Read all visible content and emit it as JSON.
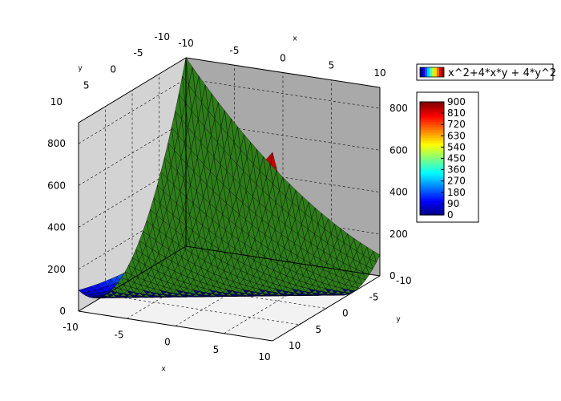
{
  "chart_data": {
    "type": "surface3d",
    "function": "x^2+4*x*y + 4*y^2",
    "title": "",
    "legend": {
      "label": "x^2+4*x*y + 4*y^2",
      "position": "top-right"
    },
    "x": {
      "label": "x",
      "range": [
        -10,
        10
      ],
      "ticks": [
        "-10",
        "-5",
        "0",
        "5",
        "10"
      ]
    },
    "y": {
      "label": "y",
      "range": [
        -10,
        10
      ],
      "ticks": [
        "-10",
        "-5",
        "0",
        "5",
        "10"
      ]
    },
    "z": {
      "range": [
        0,
        900
      ],
      "ticks": [
        "0",
        "200",
        "400",
        "600",
        "800"
      ]
    },
    "colorbar": {
      "range": [
        0,
        900
      ],
      "ticks": [
        "0",
        "90",
        "180",
        "270",
        "360",
        "450",
        "540",
        "630",
        "720",
        "810",
        "900"
      ],
      "colormap": "jet"
    },
    "surface_back_color": "#2e7d1a",
    "grid": true,
    "mesh": "triangulated"
  }
}
